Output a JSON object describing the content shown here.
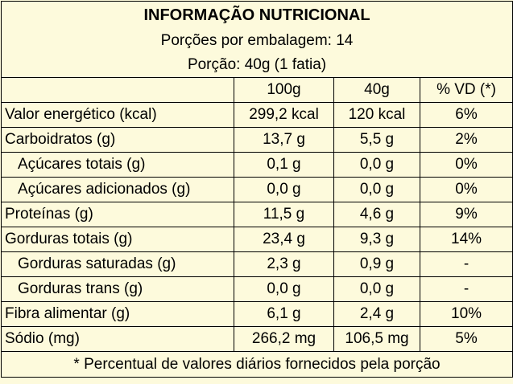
{
  "title": "INFORMAÇÃO NUTRICIONAL",
  "servings_per_package": "Porções por embalagem: 14",
  "serving_size": "Porção: 40g (1 fatia)",
  "columns": [
    "",
    "100g",
    "40g",
    "% VD (*)"
  ],
  "rows": [
    {
      "label": "Valor energético (kcal)",
      "per100": "299,2 kcal",
      "perServing": "120 kcal",
      "vd": "6%"
    },
    {
      "label": "Carboidratos (g)",
      "per100": "13,7 g",
      "perServing": "5,5 g",
      "vd": "2%"
    },
    {
      "label": "Açúcares totais (g)",
      "per100": "0,1 g",
      "perServing": "0,0 g",
      "vd": "0%"
    },
    {
      "label": "Açúcares adicionados (g)",
      "per100": "0,0 g",
      "perServing": "0,0 g",
      "vd": "0%"
    },
    {
      "label": "Proteínas (g)",
      "per100": "11,5 g",
      "perServing": "4,6 g",
      "vd": "9%"
    },
    {
      "label": "Gorduras totais (g)",
      "per100": "23,4 g",
      "perServing": "9,3 g",
      "vd": "14%"
    },
    {
      "label": "Gorduras saturadas (g)",
      "per100": "2,3 g",
      "perServing": "0,9 g",
      "vd": "-"
    },
    {
      "label": "Gorduras trans (g)",
      "per100": "0,0 g",
      "perServing": "0,0 g",
      "vd": "-"
    },
    {
      "label": "Fibra alimentar (g)",
      "per100": "6,1 g",
      "perServing": "2,4 g",
      "vd": "10%"
    },
    {
      "label": "Sódio (mg)",
      "per100": "266,2 mg",
      "perServing": "106,5 mg",
      "vd": "5%"
    }
  ],
  "footnote": "* Percentual de valores diários fornecidos pela porção",
  "colors": {
    "background": "#fdfadc",
    "border": "#000000",
    "text": "#000000"
  }
}
